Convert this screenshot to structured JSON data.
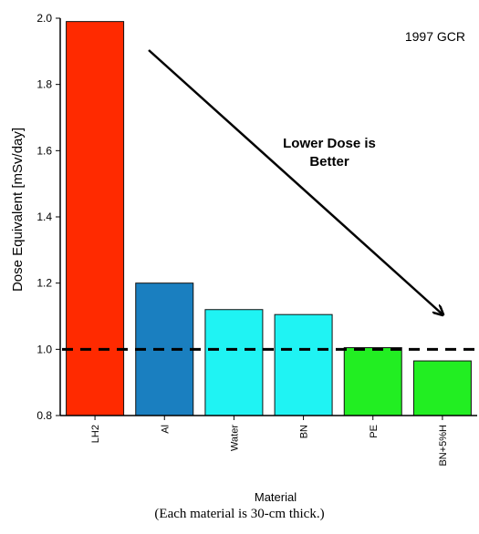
{
  "chart_data": {
    "type": "bar",
    "title": "1997 GCR",
    "xlabel": "Material",
    "ylabel": "Dose Equivalent [mSv/day]",
    "subtitle": "(Each material is 30-cm thick.)",
    "categories": [
      "LH2",
      "Al",
      "Water",
      "BN",
      "PE",
      "BN+5%H"
    ],
    "values": [
      1.99,
      1.2,
      1.12,
      1.105,
      1.005,
      0.965
    ],
    "colors": [
      "#ff2a00",
      "#1a7fc0",
      "#1ff3f3",
      "#1ff3f3",
      "#22ee22",
      "#22ee22"
    ],
    "ylim": [
      0.8,
      2.0
    ],
    "yticks": [
      "0.8",
      "1.0",
      "1.2",
      "1.4",
      "1.6",
      "1.8",
      "2.0"
    ],
    "reference_line": 1.0,
    "annotation": {
      "line1": "Lower Dose is",
      "line2": "Better"
    },
    "grid": false,
    "legend": "none"
  }
}
